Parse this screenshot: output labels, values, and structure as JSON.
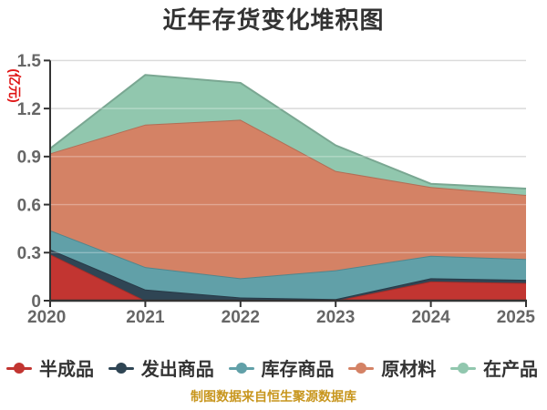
{
  "chart_data": {
    "type": "area",
    "stacked": true,
    "title": "近年存货变化堆积图",
    "ylabel": "(亿元)",
    "source_note": "制图数据来自恒生聚源数据库",
    "x": [
      "2020",
      "2021",
      "2022",
      "2023",
      "2024",
      "2025"
    ],
    "series": [
      {
        "name": "半成品",
        "color": "#c23531",
        "values": [
          0.29,
          0.0,
          0.0,
          0.0,
          0.12,
          0.11
        ]
      },
      {
        "name": "发出商品",
        "color": "#2f4554",
        "values": [
          0.03,
          0.07,
          0.02,
          0.01,
          0.02,
          0.02
        ]
      },
      {
        "name": "库存商品",
        "color": "#61a0a8",
        "values": [
          0.12,
          0.14,
          0.12,
          0.18,
          0.14,
          0.13
        ]
      },
      {
        "name": "原材料",
        "color": "#d48265",
        "values": [
          0.48,
          0.89,
          0.99,
          0.62,
          0.43,
          0.4
        ]
      },
      {
        "name": "在产品",
        "color": "#91c7ae",
        "values": [
          0.03,
          0.31,
          0.23,
          0.16,
          0.02,
          0.04
        ]
      }
    ],
    "y_ticks": [
      "0",
      "0.3",
      "0.6",
      "0.9",
      "1.2",
      "1.5"
    ],
    "ylim": [
      0,
      1.5
    ],
    "grid": true,
    "legend_position": "bottom",
    "colors": {
      "title_text": "#333333",
      "tick_text": "#666666",
      "legend_text": "#333333",
      "axis_line": "#333333",
      "grid_line": "#cccccc",
      "y_axis_name_text": "#e01515",
      "source_note_text": "#c8961e",
      "background": "#ffffff"
    }
  }
}
